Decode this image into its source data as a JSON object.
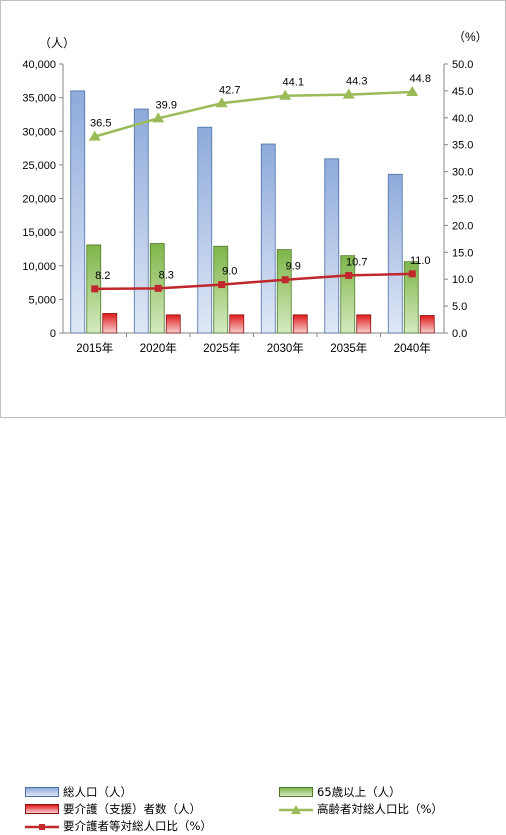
{
  "chart_data": {
    "type": "bar",
    "categories": [
      "2015年",
      "2020年",
      "2025年",
      "2030年",
      "2035年",
      "2040年"
    ],
    "left_axis": {
      "unit_label": "（人）",
      "ylim": [
        0,
        40000
      ],
      "ticks": [
        "0",
        "5,000",
        "10,000",
        "15,000",
        "20,000",
        "25,000",
        "30,000",
        "35,000",
        "40,000"
      ]
    },
    "right_axis": {
      "unit_label": "（%）",
      "ylim": [
        0,
        50
      ],
      "ticks": [
        "0.0",
        "5.0",
        "10.0",
        "15.0",
        "20.0",
        "25.0",
        "30.0",
        "35.0",
        "40.0",
        "45.0",
        "50.0"
      ]
    },
    "series": [
      {
        "name": "総人口（人）",
        "kind": "bar",
        "axis": "left",
        "color": "#8eaadb",
        "values": [
          36000,
          33300,
          30600,
          28100,
          25900,
          23600
        ]
      },
      {
        "name": "65歳以上（人）",
        "kind": "bar",
        "axis": "left",
        "color": "#92c25a",
        "values": [
          13100,
          13300,
          12900,
          12400,
          11500,
          10600
        ]
      },
      {
        "name": "要介護（支援）者数（人）",
        "kind": "bar",
        "axis": "left",
        "color": "#e02020",
        "values": [
          2900,
          2700,
          2700,
          2700,
          2700,
          2600
        ]
      },
      {
        "name": "高齢者対総人口比（%）",
        "kind": "line",
        "axis": "right",
        "color": "#9bbb59",
        "marker": "triangle",
        "values": [
          36.5,
          39.9,
          42.7,
          44.1,
          44.3,
          44.8
        ],
        "labels": [
          "36.5",
          "39.9",
          "42.7",
          "44.1",
          "44.3",
          "44.8"
        ]
      },
      {
        "name": "要介護者等対総人口比（%）",
        "kind": "line",
        "axis": "right",
        "color": "#c0282d",
        "marker": "square",
        "values": [
          8.2,
          8.3,
          9.0,
          9.9,
          10.7,
          11.0
        ],
        "labels": [
          "8.2",
          "8.3",
          "9.0",
          "9.9",
          "10.7",
          "11.0"
        ]
      }
    ],
    "grid": false,
    "legend_position": "bottom"
  }
}
